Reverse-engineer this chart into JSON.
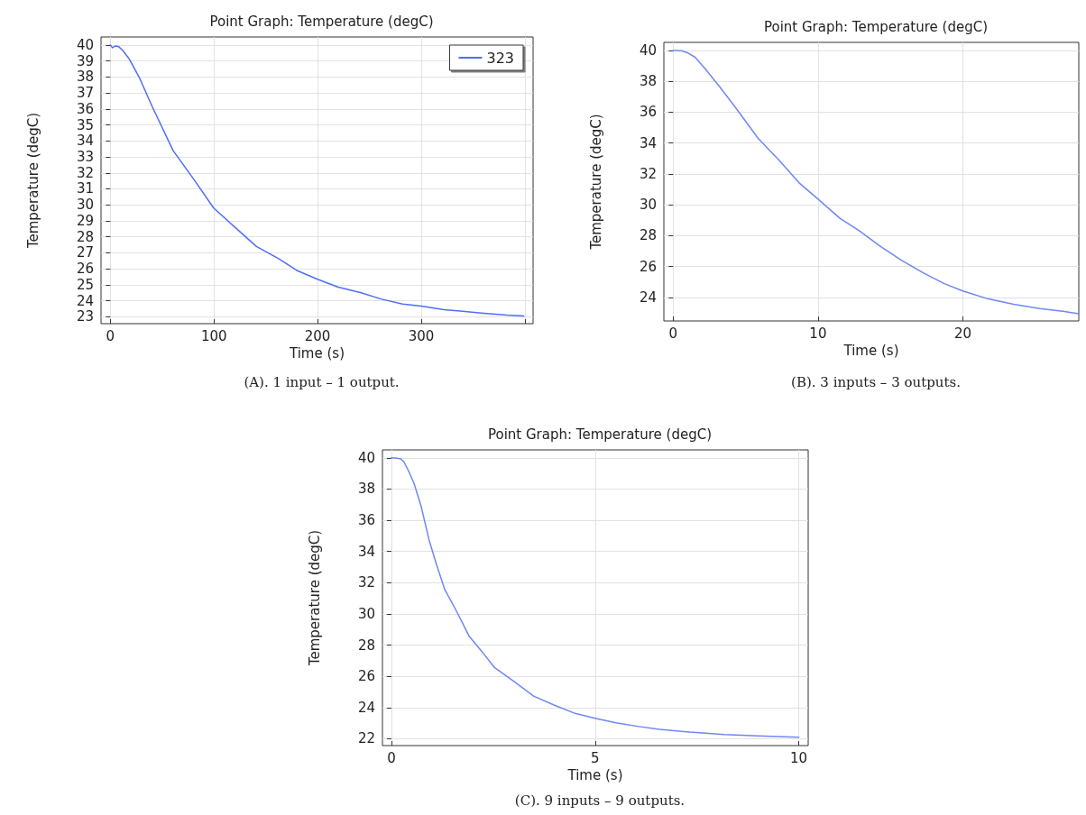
{
  "chart_data": [
    {
      "type": "line",
      "title": "Point Graph: Temperature (degC)",
      "xlabel": "Time (s)",
      "ylabel": "Temperature (degC)",
      "annotations": [
        "(A). 1 input – 1 output."
      ],
      "xlim": [
        -9,
        408
      ],
      "xticks": [
        0,
        100,
        200,
        300,
        {
          "value": 400,
          "label": null
        }
      ],
      "ylim": [
        22.57,
        40.5
      ],
      "yticks": [
        23,
        24,
        25,
        26,
        27,
        28,
        29,
        30,
        31,
        32,
        33,
        34,
        35,
        36,
        37,
        38,
        39,
        40
      ],
      "grid": true,
      "legend": "top right",
      "marker": "none",
      "line_style": "solid",
      "series": [
        {
          "name": "323",
          "color": "#4f6ef7",
          "x": [
            0,
            2,
            4.7,
            8,
            12,
            18,
            28,
            40,
            60.5,
            81.6,
            99.7,
            122,
            141,
            162,
            180,
            200,
            220,
            242,
            262,
            282,
            300,
            322,
            342,
            363,
            383,
            399
          ],
          "values": [
            40,
            39.83,
            39.93,
            39.9,
            39.65,
            39.15,
            37.96,
            36.2,
            33.4,
            31.5,
            29.8,
            28.5,
            27.4,
            26.65,
            25.9,
            25.35,
            24.85,
            24.5,
            24.1,
            23.8,
            23.67,
            23.45,
            23.33,
            23.2,
            23.1,
            23.05
          ]
        }
      ]
    },
    {
      "type": "line",
      "title": "Point Graph: Temperature (degC)",
      "xlabel": "Time (s)",
      "ylabel": "Temperature (degC)",
      "annotations": [
        "(B). 3 inputs – 3 outputs."
      ],
      "xlim": [
        -0.64,
        28
      ],
      "xticks": [
        0,
        10,
        20
      ],
      "ylim": [
        22.47,
        40.52
      ],
      "yticks": [
        24,
        26,
        28,
        30,
        32,
        34,
        36,
        38,
        40
      ],
      "grid": true,
      "marker": "none",
      "line_style": "solid",
      "series": [
        {
          "color": "#6f87f5",
          "x": [
            0,
            0.57,
            1.03,
            1.5,
            2.17,
            3.2,
            4.34,
            5.87,
            7.3,
            8.68,
            9.95,
            11.53,
            12.8,
            14.27,
            15.75,
            17.35,
            18.72,
            20,
            21.7,
            23.5,
            25.3,
            26.9,
            28
          ],
          "values": [
            40,
            39.98,
            39.83,
            39.57,
            38.85,
            37.66,
            36.26,
            34.3,
            32.9,
            31.43,
            30.41,
            29.11,
            28.35,
            27.32,
            26.41,
            25.54,
            24.89,
            24.41,
            23.91,
            23.55,
            23.27,
            23.1,
            22.94
          ]
        }
      ]
    },
    {
      "type": "line",
      "title": "Point Graph: Temperature (degC)",
      "xlabel": "Time (s)",
      "ylabel": "Temperature (degC)",
      "annotations": [
        "(C). 9 inputs – 9 outputs."
      ],
      "xlim": [
        -0.22,
        10.23
      ],
      "xticks": [
        0,
        5,
        10
      ],
      "ylim": [
        21.56,
        40.51
      ],
      "yticks": [
        22,
        24,
        26,
        28,
        30,
        32,
        34,
        36,
        38,
        40
      ],
      "grid": true,
      "marker": "none",
      "line_style": "solid",
      "series": [
        {
          "color": "#6f87f5",
          "x": [
            0,
            0.14,
            0.23,
            0.31,
            0.43,
            0.56,
            0.73,
            0.92,
            1.1,
            1.31,
            1.61,
            1.91,
            2.23,
            2.53,
            3.01,
            3.49,
            3.99,
            4.51,
            5,
            5.54,
            6.08,
            6.58,
            7.33,
            8.17,
            9.0,
            10
          ],
          "values": [
            40,
            39.98,
            39.93,
            39.73,
            39.11,
            38.33,
            36.89,
            34.78,
            33.22,
            31.56,
            30.11,
            28.56,
            27.56,
            26.56,
            25.67,
            24.73,
            24.16,
            23.62,
            23.31,
            23.0,
            22.78,
            22.6,
            22.42,
            22.27,
            22.18,
            22.09
          ]
        }
      ]
    }
  ]
}
